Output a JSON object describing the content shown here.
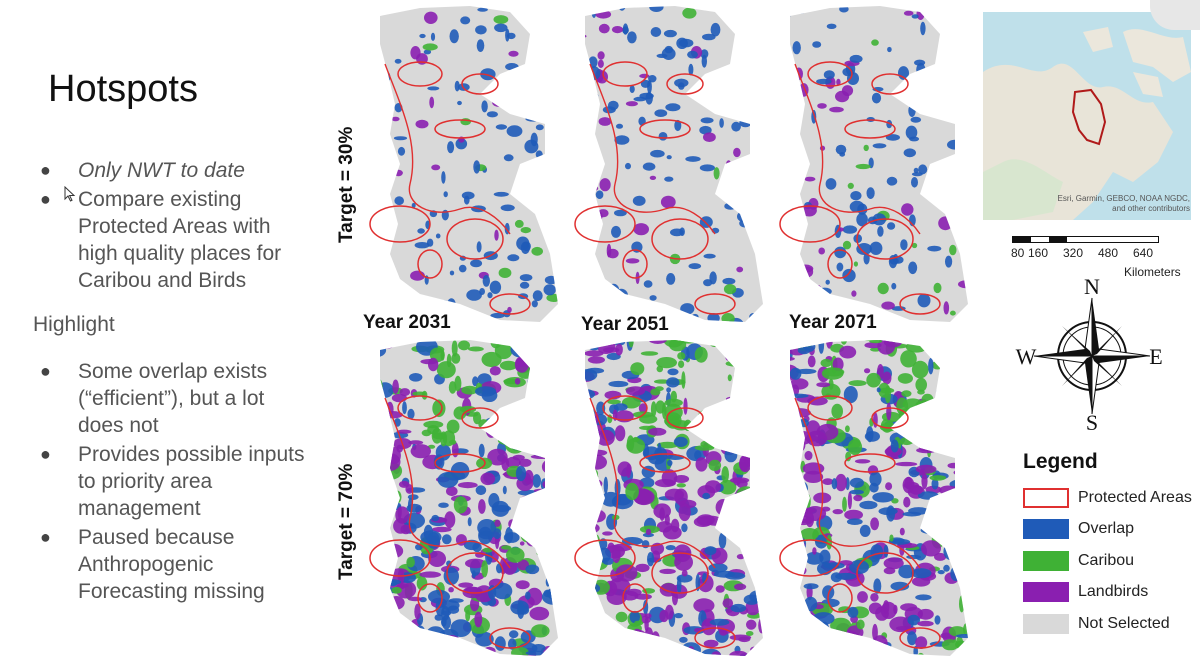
{
  "slide": {
    "title": "Hotspots",
    "bullets_top": [
      "Only NWT to date",
      "Compare existing Protected Areas with high quality places for Caribou and Birds"
    ],
    "subheading": "Highlight",
    "bullets_bottom": [
      "Some overlap exists (“efficient”), but a lot does not",
      "Provides possible inputs to priority area management",
      "Paused because Anthropogenic Forecasting missing"
    ]
  },
  "maps": {
    "years": [
      "Year 2031",
      "Year 2051",
      "Year 2071"
    ],
    "targets": [
      "Target = 30%",
      "Target = 70%"
    ]
  },
  "inset_map": {
    "attribution": "Esri, Garmin, GEBCO, NOAA NGDC, and other contributors"
  },
  "scale": {
    "ticks": [
      "80",
      "160",
      "320",
      "480",
      "640"
    ],
    "unit": "Kilometers"
  },
  "compass": {
    "n": "N",
    "s": "S",
    "e": "E",
    "w": "W"
  },
  "legend": {
    "title": "Legend",
    "items": [
      {
        "label": "Protected Areas",
        "color": "#e03030",
        "outline": true
      },
      {
        "label": "Overlap",
        "color": "#1f5bb8"
      },
      {
        "label": "Caribou",
        "color": "#3fb135"
      },
      {
        "label": "Landbirds",
        "color": "#8a1fb0"
      },
      {
        "label": "Not Selected",
        "color": "#d9d9d9"
      }
    ]
  },
  "colors": {
    "overlap": "#1f5bb8",
    "caribou": "#3fb135",
    "landbirds": "#8a1fb0",
    "not_selected": "#d9d9d9",
    "protected": "#e03030"
  }
}
